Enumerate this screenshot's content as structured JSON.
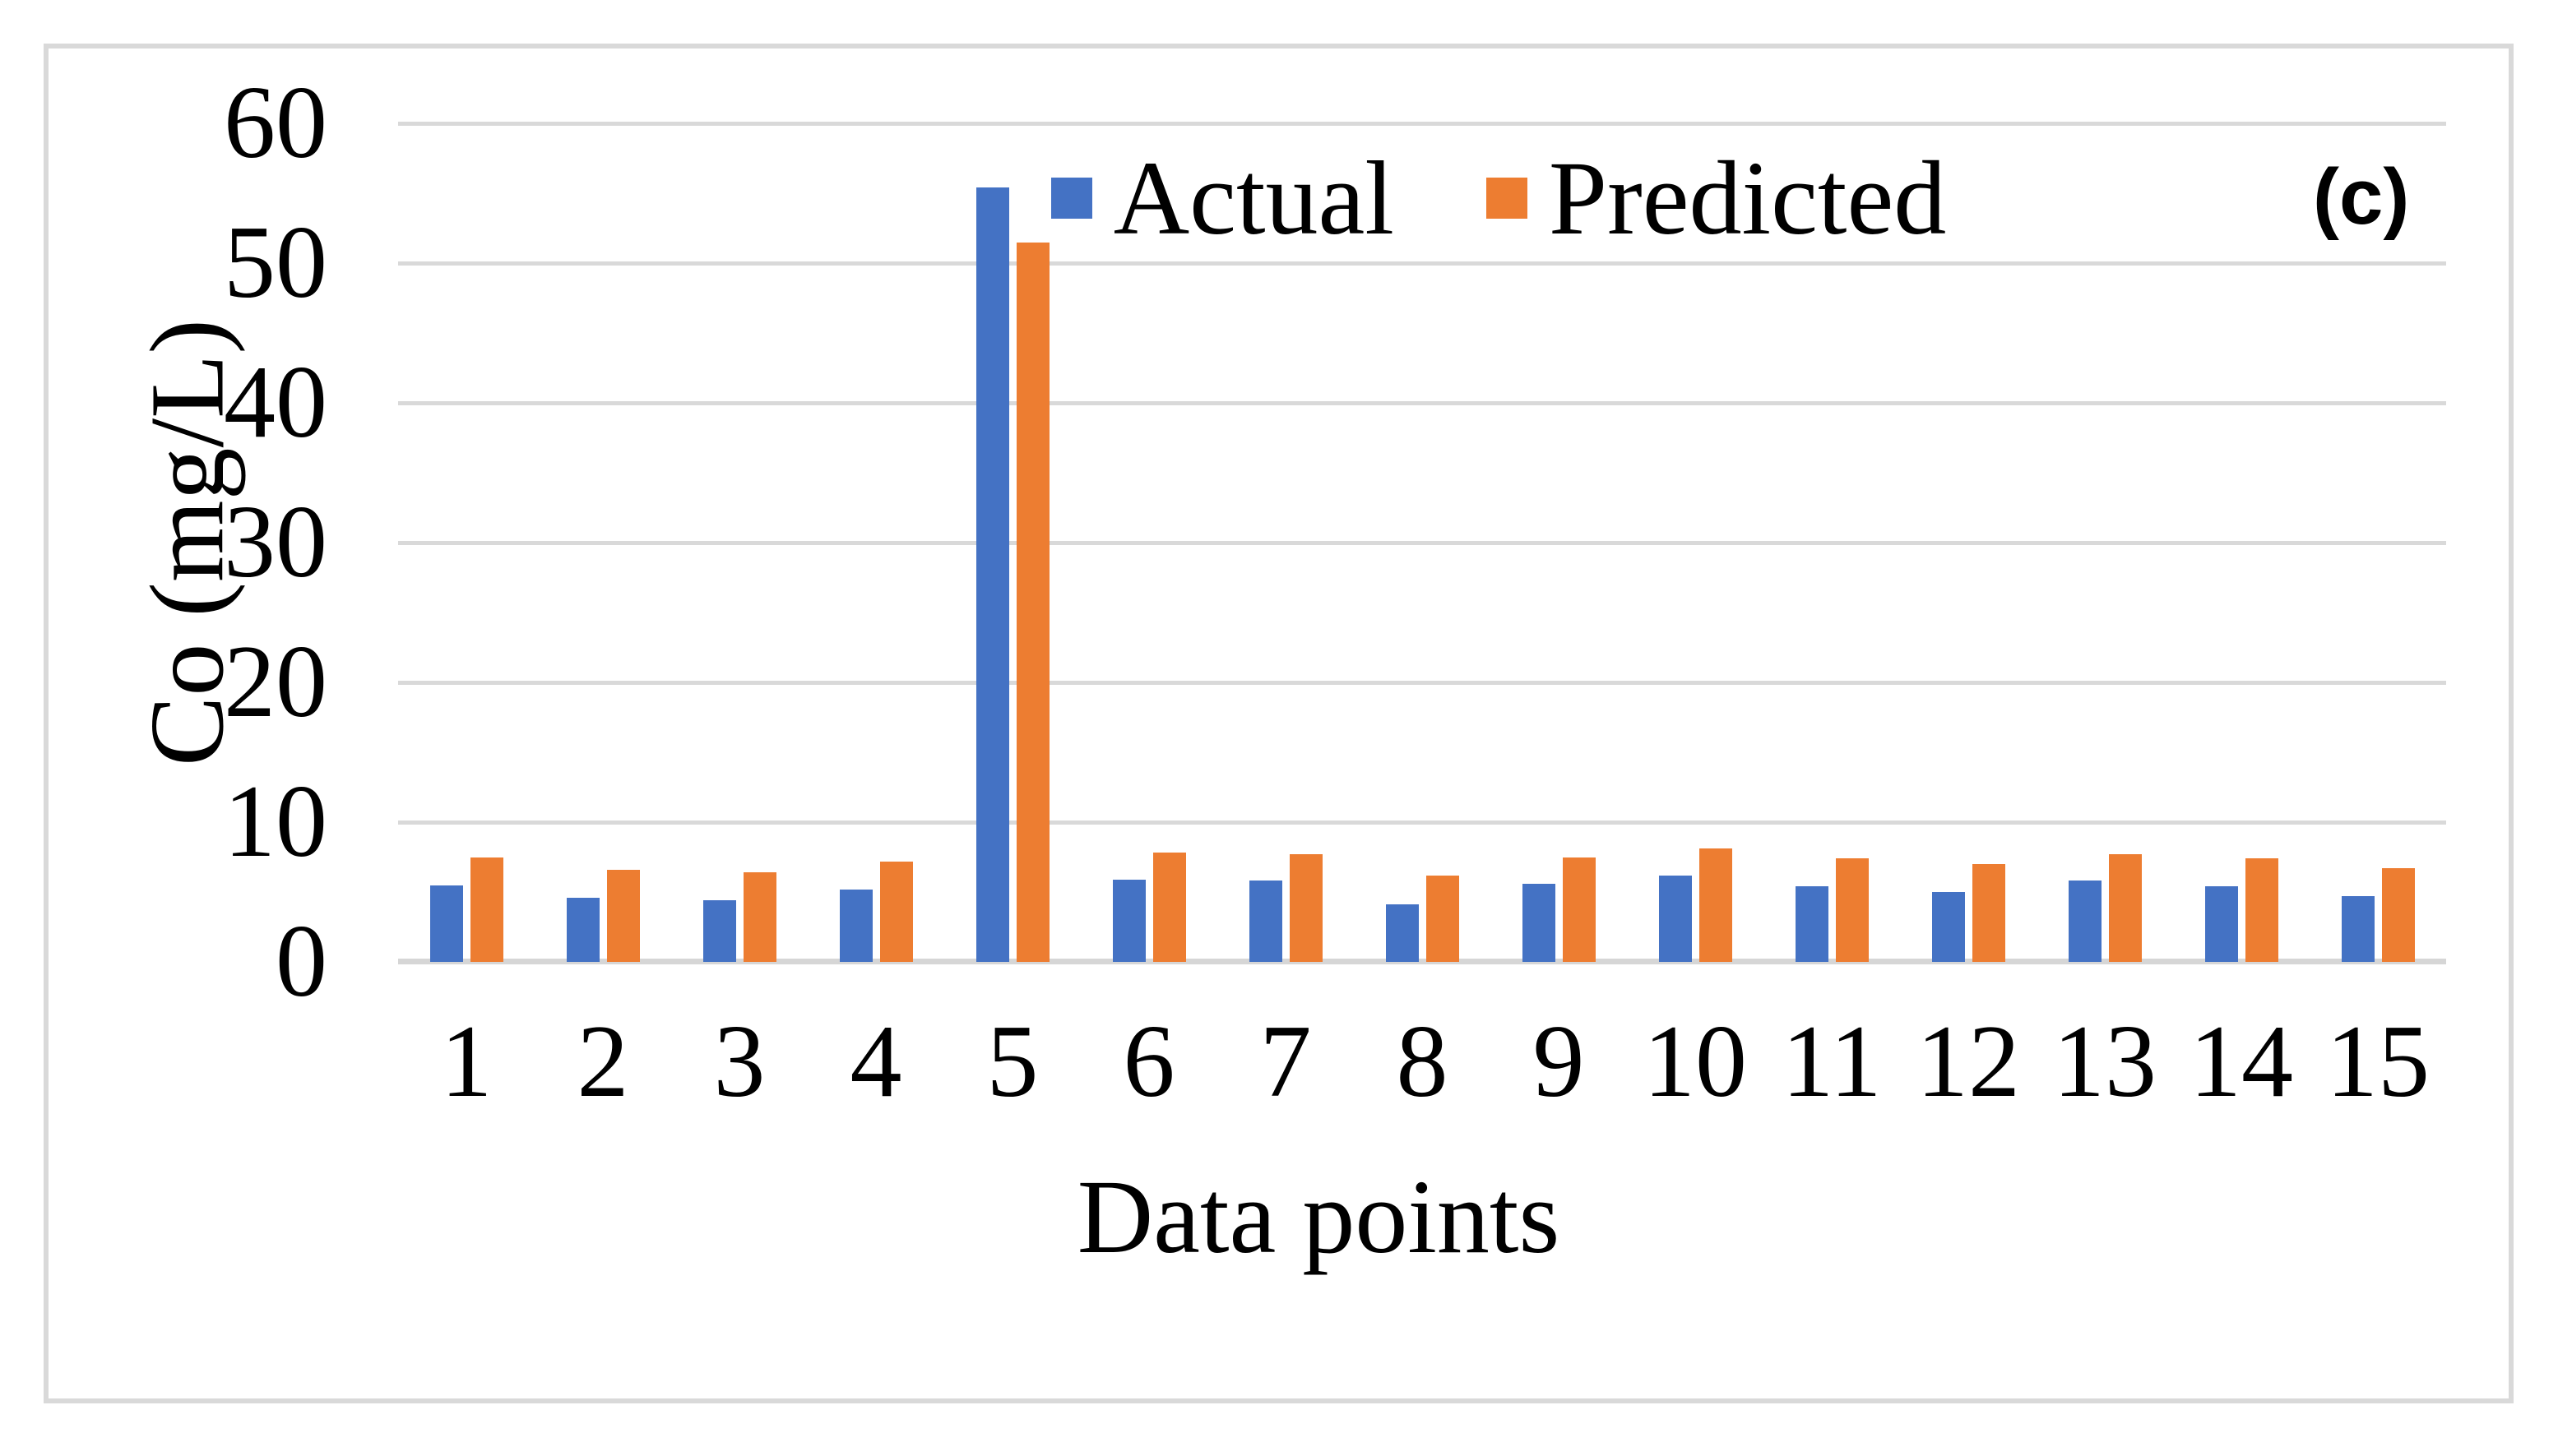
{
  "figure": {
    "panel_label": "(c)"
  },
  "chart_data": {
    "type": "bar",
    "title": "",
    "xlabel": "Data points",
    "ylabel": "Co (mg/L)",
    "categories": [
      "1",
      "2",
      "3",
      "4",
      "5",
      "6",
      "7",
      "8",
      "9",
      "10",
      "11",
      "12",
      "13",
      "14",
      "15"
    ],
    "series": [
      {
        "name": "Actual",
        "color": "#4472C4",
        "values": [
          5.5,
          4.6,
          4.4,
          5.2,
          55.4,
          5.9,
          5.8,
          4.1,
          5.6,
          6.2,
          5.4,
          5.0,
          5.8,
          5.4,
          4.7
        ]
      },
      {
        "name": "Predicted",
        "color": "#ED7D31",
        "values": [
          7.5,
          6.6,
          6.4,
          7.2,
          51.5,
          7.8,
          7.7,
          6.2,
          7.5,
          8.1,
          7.4,
          7.0,
          7.7,
          7.4,
          6.7
        ]
      }
    ],
    "ylim": [
      0,
      60
    ],
    "yticks": [
      0,
      10,
      20,
      30,
      40,
      50,
      60
    ],
    "grid": true,
    "legend_position": "top-center",
    "gridline_color": "#D9D9D9",
    "border_color": "#D9D9D9",
    "text_color": "#000000"
  }
}
